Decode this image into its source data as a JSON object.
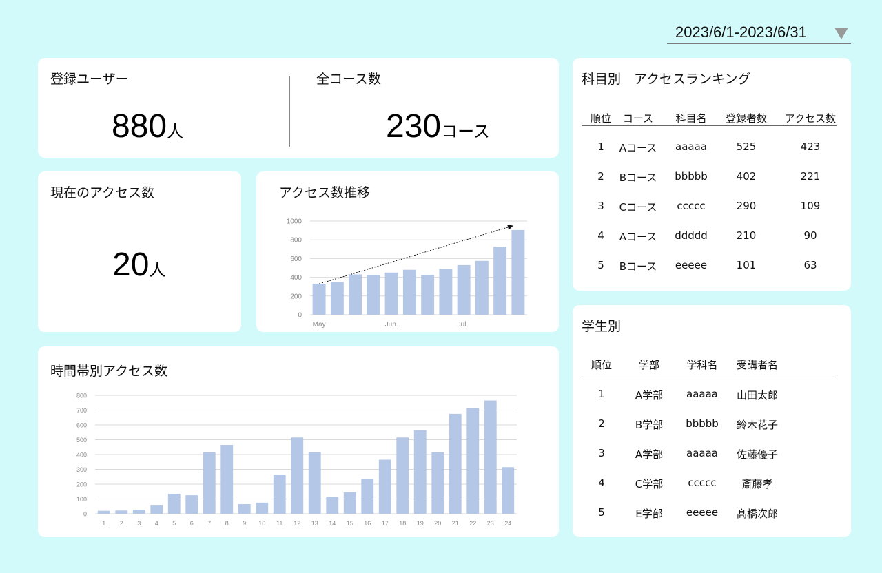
{
  "date_range": {
    "label": "2023/6/1-2023/6/31"
  },
  "summary": {
    "registered_users": {
      "title": "登録ユーザー",
      "value": "880",
      "unit": "人"
    },
    "total_courses": {
      "title": "全コース数",
      "value": "230",
      "unit": "コース"
    }
  },
  "current_access": {
    "title": "現在のアクセス数",
    "value": "20",
    "unit": "人"
  },
  "access_trend": {
    "title": "アクセス数推移"
  },
  "hourly_access": {
    "title": "時間帯別アクセス数"
  },
  "subject_ranking": {
    "title": "科目別　アクセスランキング",
    "headers": [
      "順位",
      "コース",
      "科目名",
      "登録者数",
      "アクセス数"
    ],
    "rows": [
      [
        "1",
        "Aコース",
        "aaaaa",
        "525",
        "423"
      ],
      [
        "2",
        "Bコース",
        "bbbbb",
        "402",
        "221"
      ],
      [
        "3",
        "Cコース",
        "ccccc",
        "290",
        "109"
      ],
      [
        "4",
        "Aコース",
        "ddddd",
        "210",
        "90"
      ],
      [
        "5",
        "Bコース",
        "eeeee",
        "101",
        "63"
      ]
    ]
  },
  "student_ranking": {
    "title": "学生別",
    "headers": [
      "順位",
      "学部",
      "学科名",
      "受講者名"
    ],
    "rows": [
      [
        "1",
        "A学部",
        "aaaaa",
        "山田太郎"
      ],
      [
        "2",
        "B学部",
        "bbbbb",
        "鈴木花子"
      ],
      [
        "3",
        "A学部",
        "aaaaa",
        "佐藤優子"
      ],
      [
        "4",
        "C学部",
        "ccccc",
        "斎藤孝"
      ],
      [
        "5",
        "E学部",
        "eeeee",
        "髙橋次郎"
      ]
    ]
  },
  "colors": {
    "background": "#d3fafa",
    "card": "#ffffff",
    "bar": "#b4c7e7",
    "grid": "#d9d9d9"
  },
  "chart_data": [
    {
      "type": "bar",
      "x": [
        "May",
        "",
        "",
        "",
        "Jun.",
        "",
        "",
        "",
        "Jul.",
        "",
        "",
        ""
      ],
      "tick_labels": [
        "May",
        "Jun.",
        "Jul."
      ],
      "values": [
        330,
        350,
        430,
        425,
        450,
        480,
        425,
        490,
        530,
        575,
        725,
        905
      ],
      "ylim": [
        0,
        1000
      ],
      "yticks": [
        0,
        200,
        400,
        600,
        800,
        1000
      ],
      "grid": true,
      "annotations": [
        "trend arrow from first bar to last bar"
      ]
    },
    {
      "type": "bar",
      "x": [
        "1",
        "2",
        "3",
        "4",
        "5",
        "6",
        "7",
        "8",
        "9",
        "10",
        "11",
        "12",
        "13",
        "14",
        "15",
        "16",
        "17",
        "18",
        "19",
        "20",
        "21",
        "22",
        "23",
        "24"
      ],
      "values": [
        20,
        22,
        28,
        60,
        135,
        125,
        415,
        465,
        65,
        75,
        265,
        515,
        415,
        115,
        145,
        235,
        365,
        515,
        565,
        415,
        675,
        715,
        765,
        315
      ],
      "ylim": [
        0,
        800
      ],
      "yticks": [
        0,
        100,
        200,
        300,
        400,
        500,
        600,
        700,
        800
      ],
      "grid": true
    }
  ]
}
